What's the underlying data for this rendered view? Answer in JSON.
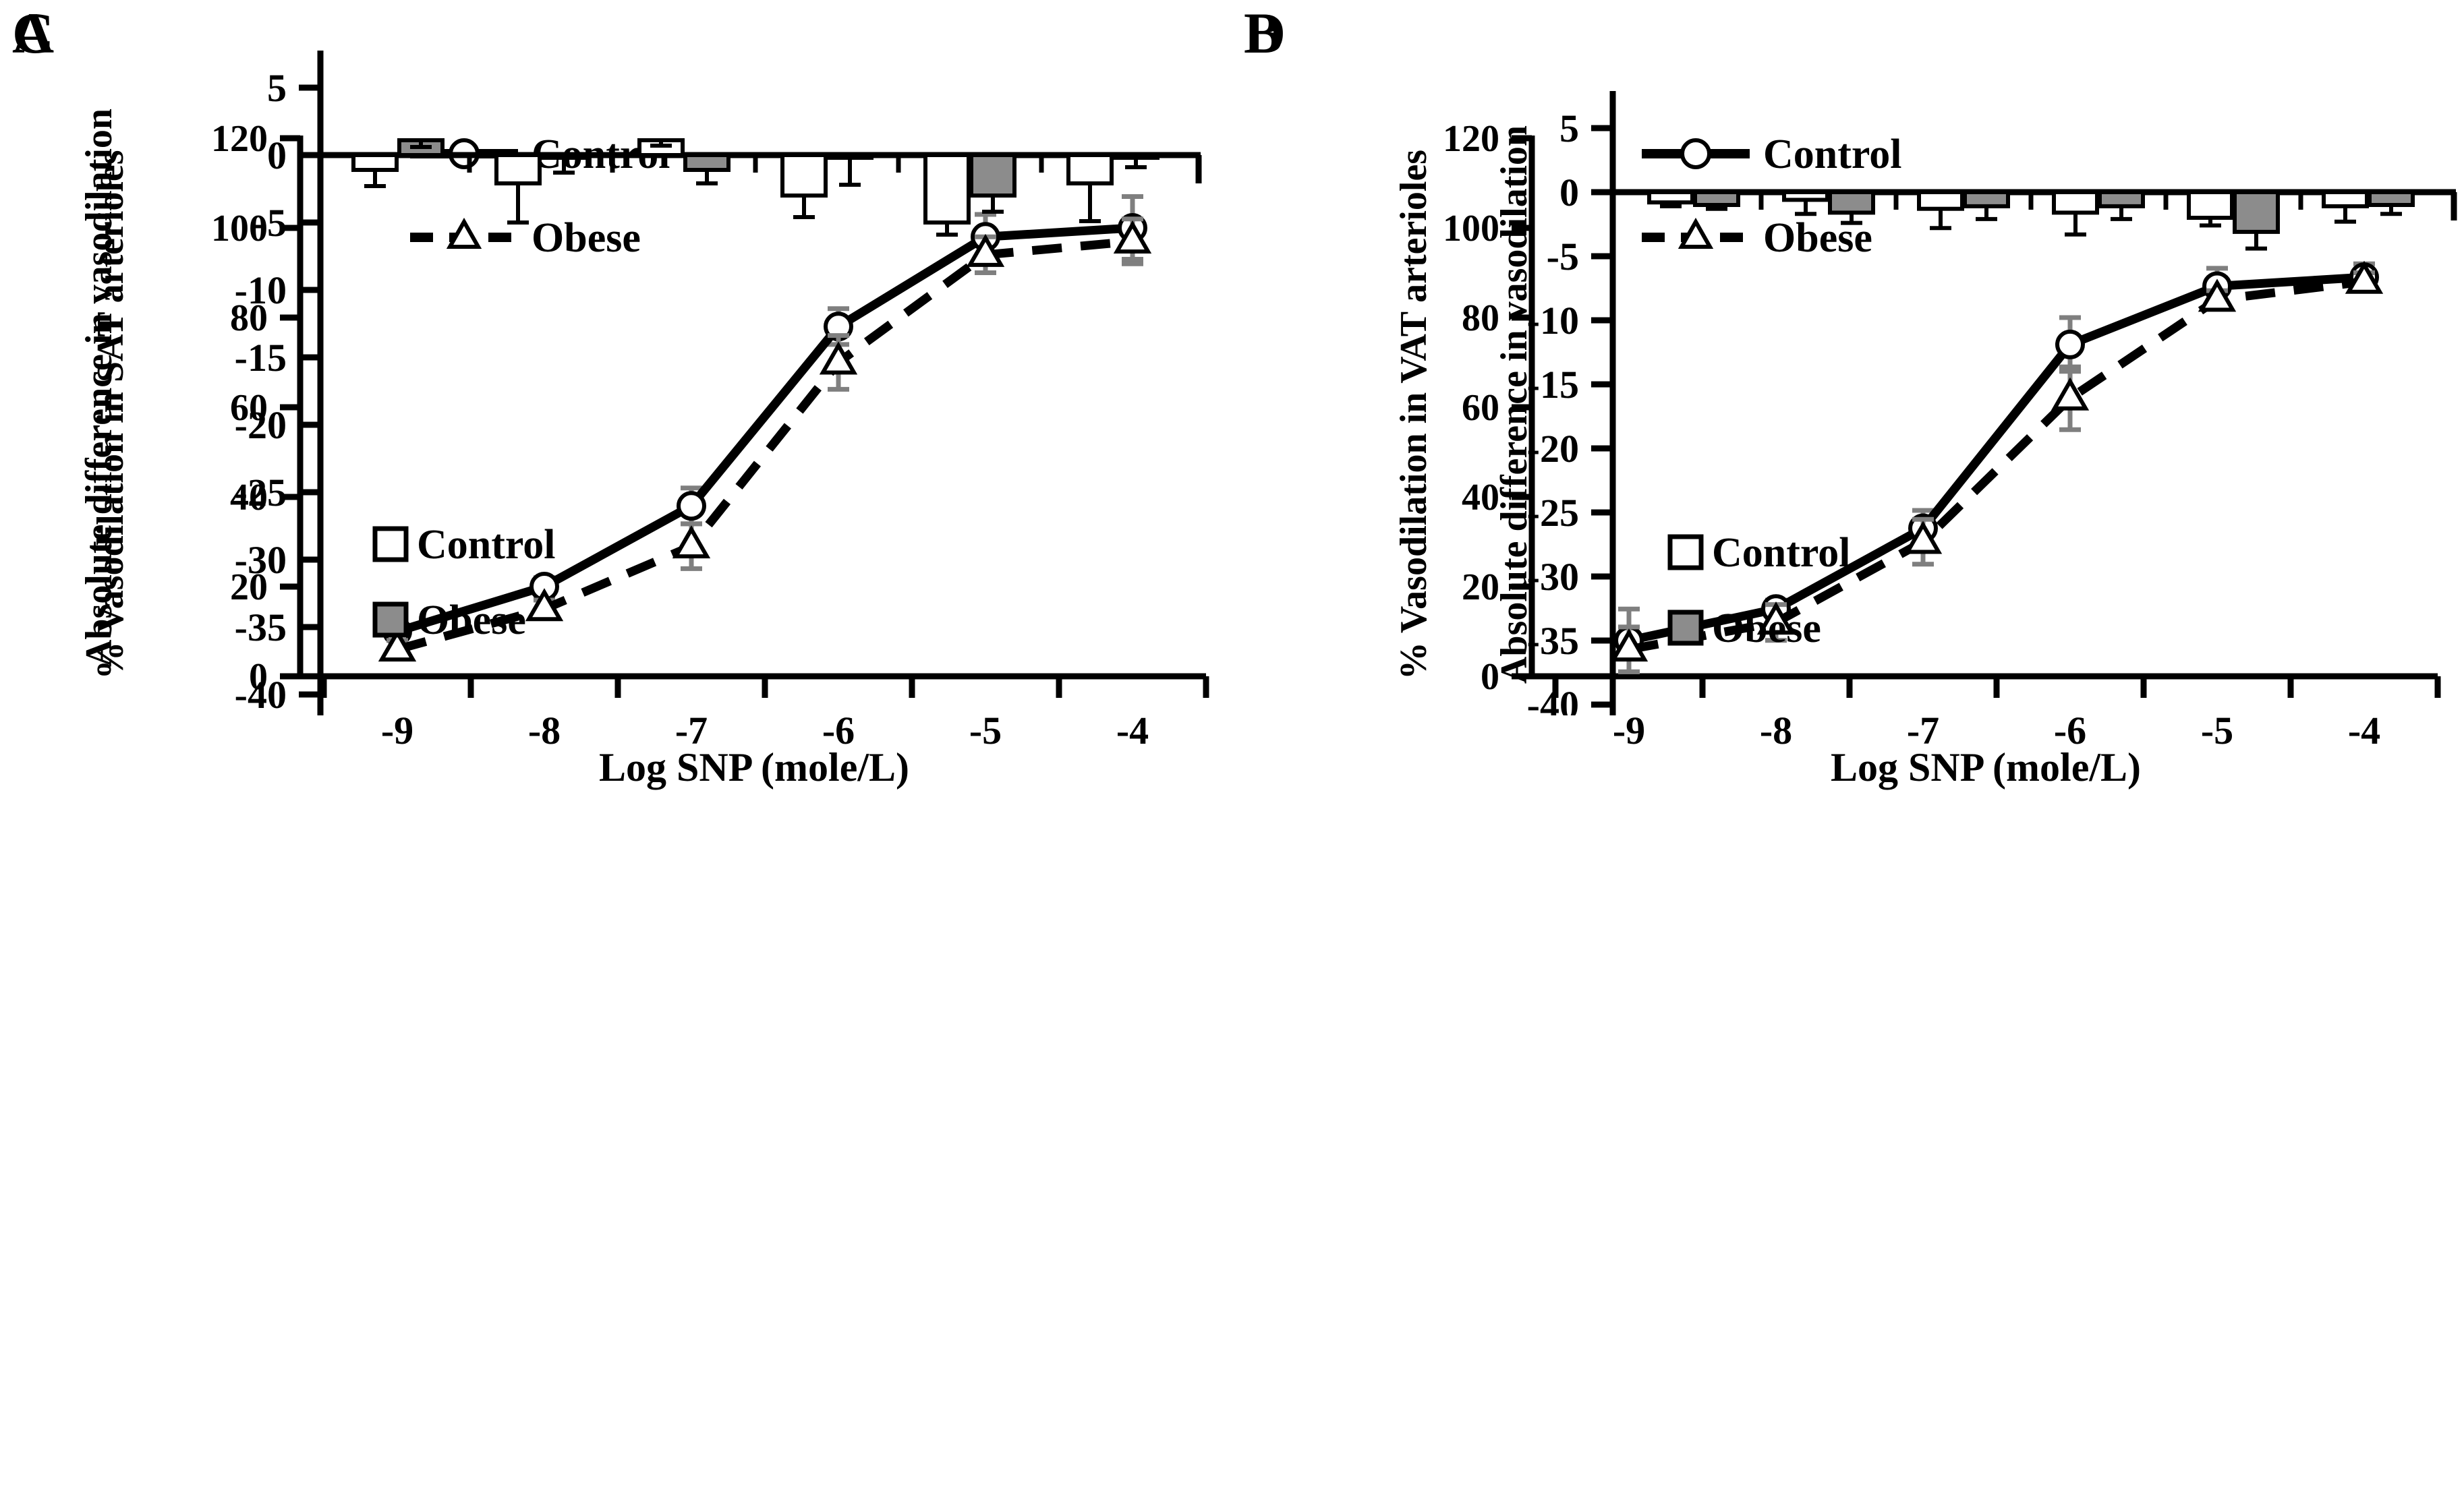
{
  "figure": {
    "background": "#ffffff",
    "text_color": "#000000",
    "line_chart_error_bar_color": "#7f7f7f",
    "series_line_color": "#000000",
    "control_fill": "#ffffff",
    "obese_fill": "#8c8c8c",
    "panel_labels": [
      "A",
      "B",
      "C",
      "D"
    ]
  },
  "chart_data": [
    {
      "panel_label": "A",
      "type": "line",
      "ylabel": "% Vasodilation in SAT arterioles",
      "xlabel": "Log SNP (mole/L)",
      "x_tick_labels": [
        "-9",
        "-8",
        "-7",
        "-6",
        "-5",
        "-4"
      ],
      "y_tick_labels": [
        "0",
        "20",
        "40",
        "60",
        "80",
        "100",
        "120"
      ],
      "ylim": [
        0,
        120
      ],
      "grid": false,
      "legend_position": "top-left-inside",
      "legend": [
        "Control",
        "Obese"
      ],
      "series": [
        {
          "name": "Control",
          "line_style": "solid",
          "marker": "open-circle",
          "values": [
            10,
            20,
            38,
            78,
            98,
            100
          ],
          "errors": [
            2,
            2,
            4,
            4,
            5,
            7
          ]
        },
        {
          "name": "Obese",
          "line_style": "dashed",
          "marker": "open-triangle",
          "values": [
            6,
            15,
            29,
            70,
            94,
            97
          ],
          "errors": [
            2,
            2,
            5,
            6,
            4,
            5
          ]
        }
      ]
    },
    {
      "panel_label": "B",
      "type": "line",
      "ylabel": "% Vasodilation in VAT arterioles",
      "xlabel": "Log SNP (mole/L)",
      "x_tick_labels": [
        "-9",
        "-8",
        "-7",
        "-6",
        "-5",
        "-4"
      ],
      "y_tick_labels": [
        "0",
        "20",
        "40",
        "60",
        "80",
        "100",
        "120"
      ],
      "ylim": [
        0,
        120
      ],
      "grid": false,
      "legend_position": "top-left-inside",
      "legend": [
        "Control",
        "Obese"
      ],
      "series": [
        {
          "name": "Control",
          "line_style": "solid",
          "marker": "open-circle",
          "values": [
            8,
            15,
            33,
            74,
            87,
            89
          ],
          "errors": [
            7,
            2,
            4,
            6,
            4,
            3
          ]
        },
        {
          "name": "Obese",
          "line_style": "dashed",
          "marker": "open-triangle",
          "values": [
            6,
            12,
            30,
            62,
            84,
            88
          ],
          "errors": [
            5,
            4,
            5,
            7,
            2,
            2
          ]
        }
      ]
    },
    {
      "panel_label": "C",
      "type": "bar",
      "ylabel": "Absolute difference in vasodilation",
      "xlabel": "",
      "x_tick_labels": [],
      "y_tick_labels": [
        "5",
        "0",
        "-5",
        "-10",
        "-15",
        "-20",
        "-25",
        "-30",
        "-35",
        "-40"
      ],
      "ylim": [
        -40,
        5
      ],
      "grid": false,
      "legend_position": "lower-left-inside",
      "legend": [
        "Control",
        "Obese"
      ],
      "series": [
        {
          "name": "Control",
          "fill": "#ffffff",
          "values": [
            -1.1,
            -2.1,
            1.1,
            -3.0,
            -5.0,
            -2.1
          ],
          "errors": [
            1.2,
            2.9,
            0.4,
            1.6,
            0.9,
            2.8
          ]
        },
        {
          "name": "Obese",
          "fill": "#8c8c8c",
          "values": [
            1.1,
            -0.2,
            -1.1,
            -0.2,
            -3.0,
            -0.2
          ],
          "errors": [
            0.5,
            1.1,
            1.0,
            2.0,
            1.2,
            0.7
          ]
        }
      ]
    },
    {
      "panel_label": "D",
      "type": "bar",
      "ylabel": "Absolute difference in vasodilation",
      "xlabel": "",
      "x_tick_labels": [],
      "y_tick_labels": [
        "5",
        "0",
        "-5",
        "-10",
        "-15",
        "-20",
        "-25",
        "-30",
        "-35",
        "-40"
      ],
      "ylim": [
        -40,
        5
      ],
      "grid": false,
      "legend_position": "lower-left-inside",
      "legend": [
        "Control",
        "Obese"
      ],
      "series": [
        {
          "name": "Control",
          "fill": "#ffffff",
          "values": [
            -0.8,
            -0.6,
            -1.3,
            -1.6,
            -2.0,
            -1.1
          ],
          "errors": [
            0.3,
            1.1,
            1.5,
            1.7,
            0.6,
            1.2
          ]
        },
        {
          "name": "Obese",
          "fill": "#8c8c8c",
          "values": [
            -1.0,
            -1.6,
            -1.1,
            -1.1,
            -3.1,
            -1.0
          ],
          "errors": [
            0.3,
            0.8,
            1.0,
            1.0,
            1.3,
            0.7
          ]
        }
      ]
    }
  ]
}
